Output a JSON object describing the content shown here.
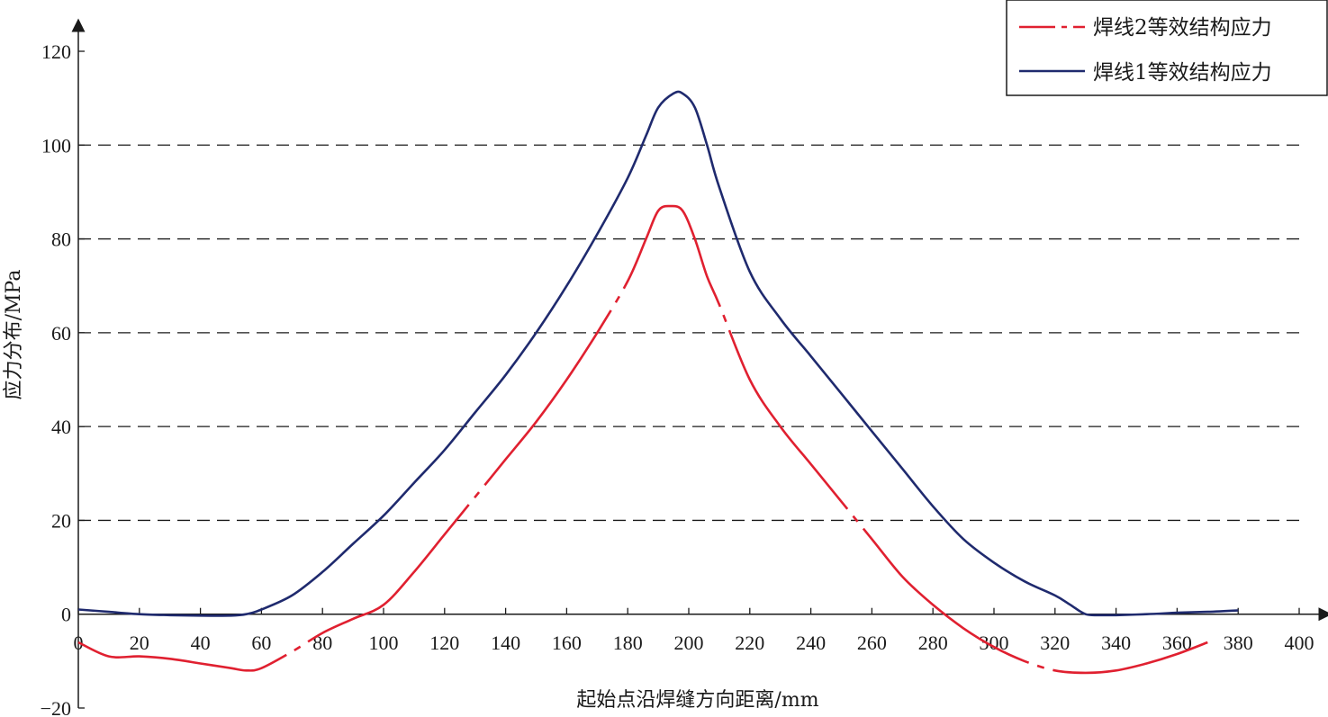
{
  "chart_data": {
    "type": "line",
    "title": "",
    "xlabel": "起始点沿焊缝方向距离/mm",
    "ylabel": "应力分布/MPa",
    "xlim": [
      0,
      400
    ],
    "ylim": [
      -20,
      120
    ],
    "x_ticks": [
      0,
      20,
      40,
      60,
      80,
      100,
      120,
      140,
      160,
      180,
      200,
      220,
      240,
      260,
      280,
      300,
      320,
      340,
      360,
      380,
      400
    ],
    "y_ticks": [
      -20,
      0,
      20,
      40,
      60,
      80,
      100,
      120
    ],
    "y_tick_labels": [
      "−20",
      "0",
      "20",
      "40",
      "60",
      "80",
      "100",
      "120"
    ],
    "grid": "horizontal dashed at 20, 40, 60, 80, 100",
    "grid_y_values": [
      20,
      40,
      60,
      80,
      100
    ],
    "legend_position": "top-right",
    "series": [
      {
        "name": "焊线2等效结构应力",
        "color": "#e02030",
        "style": "dash-dot",
        "x": [
          0,
          10,
          20,
          30,
          40,
          50,
          55,
          60,
          70,
          80,
          90,
          100,
          110,
          120,
          130,
          140,
          150,
          160,
          170,
          180,
          186,
          190,
          194,
          198,
          202,
          206,
          210,
          220,
          230,
          240,
          250,
          260,
          270,
          280,
          290,
          300,
          310,
          320,
          330,
          340,
          350,
          360,
          370
        ],
        "values": [
          -6,
          -9,
          -9,
          -9.5,
          -10.5,
          -11.5,
          -12,
          -11.5,
          -8,
          -4,
          -1,
          2,
          9,
          17,
          25,
          33,
          41,
          50,
          60,
          71,
          80,
          86,
          87,
          86,
          80,
          72,
          66,
          50,
          40,
          32,
          24,
          16,
          8,
          2,
          -3,
          -7,
          -10,
          -12,
          -12.5,
          -12,
          -10.5,
          -8.5,
          -6
        ]
      },
      {
        "name": "焊线1等效结构应力",
        "color": "#1f2a6e",
        "style": "solid",
        "x": [
          0,
          10,
          20,
          30,
          40,
          50,
          55,
          60,
          70,
          80,
          90,
          100,
          110,
          120,
          130,
          140,
          150,
          160,
          170,
          180,
          186,
          190,
          195,
          198,
          202,
          206,
          210,
          220,
          230,
          240,
          250,
          260,
          270,
          280,
          290,
          300,
          310,
          320,
          325,
          330,
          335,
          340,
          350,
          360,
          370,
          380
        ],
        "values": [
          1,
          0.5,
          0,
          -0.2,
          -0.3,
          -0.3,
          0,
          1,
          4,
          9,
          15,
          21,
          28,
          35,
          43,
          51,
          60,
          70,
          81,
          93,
          102,
          108,
          111,
          111,
          108,
          100,
          91,
          73,
          63,
          55,
          47,
          39,
          31,
          23,
          16,
          11,
          7,
          4,
          2,
          0,
          -0.2,
          -0.2,
          0,
          0.3,
          0.5,
          0.8
        ]
      }
    ]
  }
}
